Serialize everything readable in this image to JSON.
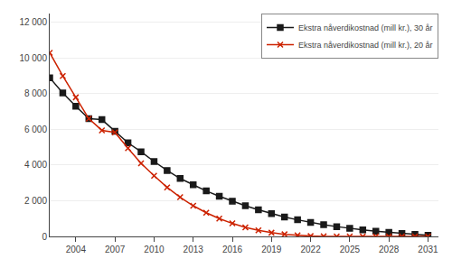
{
  "chart_data": {
    "type": "line",
    "x": [
      2002,
      2003,
      2004,
      2005,
      2006,
      2007,
      2008,
      2009,
      2010,
      2011,
      2012,
      2013,
      2014,
      2015,
      2016,
      2017,
      2018,
      2019,
      2020,
      2021,
      2022,
      2023,
      2024,
      2025,
      2026,
      2027,
      2028,
      2029,
      2030,
      2031
    ],
    "series": [
      {
        "name": "Ekstra nåverdikostnad (mill kr.), 30 år",
        "color": "#1a1a1a",
        "marker": "square",
        "values": [
          8900,
          8050,
          7300,
          6600,
          6550,
          5900,
          5250,
          4750,
          4200,
          3700,
          3250,
          2900,
          2550,
          2250,
          1980,
          1720,
          1490,
          1280,
          1090,
          930,
          790,
          660,
          550,
          450,
          365,
          290,
          225,
          165,
          110,
          65
        ]
      },
      {
        "name": "Ekstra nåverdikostnad (mill kr.), 20 år",
        "color": "#cc2200",
        "marker": "x",
        "values": [
          10300,
          9000,
          7800,
          6600,
          5950,
          5830,
          4950,
          4100,
          3400,
          2750,
          2200,
          1720,
          1330,
          1000,
          730,
          510,
          340,
          210,
          120,
          60,
          20,
          5,
          0,
          0,
          0,
          0,
          0,
          0,
          0,
          0
        ]
      }
    ],
    "xlim": [
      2002,
      2031.8
    ],
    "xticks": [
      2004,
      2007,
      2010,
      2013,
      2016,
      2019,
      2022,
      2025,
      2028,
      2031
    ],
    "ylim": [
      0,
      12500
    ],
    "yticks": [
      0,
      {
        "value": 2000,
        "label": "2 000"
      },
      {
        "value": 4000,
        "label": "4 000"
      },
      {
        "value": 6000,
        "label": "6 000"
      },
      {
        "value": 8000,
        "label": "8 000"
      },
      {
        "value": 10000,
        "label": "10 000"
      },
      {
        "value": 12000,
        "label": "12 000"
      }
    ],
    "grid": "y",
    "legend": "upper right"
  }
}
